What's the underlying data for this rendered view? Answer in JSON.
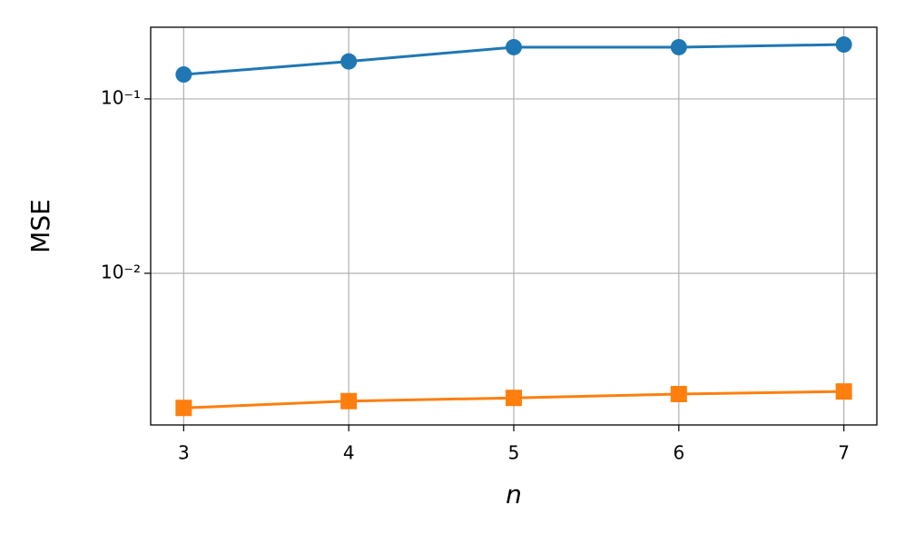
{
  "chart_data": {
    "type": "line",
    "xlabel": "n",
    "ylabel": "MSE",
    "x": [
      3,
      4,
      5,
      6,
      7
    ],
    "series": [
      {
        "color": "#1f77b4",
        "marker": "circle",
        "values": [
          0.138,
          0.164,
          0.198,
          0.198,
          0.205
        ]
      },
      {
        "color": "#ff7f0e",
        "marker": "square",
        "values": [
          0.00169,
          0.00185,
          0.00193,
          0.00203,
          0.0021
        ]
      }
    ],
    "xlim": [
      2.8,
      7.2
    ],
    "xticks": [
      3,
      4,
      5,
      6,
      7
    ],
    "ylim": [
      0.00135,
      0.2576
    ],
    "yscale": "log",
    "yticks": [
      {
        "value": 0.1,
        "label": "10⁻¹"
      },
      {
        "value": 0.01,
        "label": "10⁻²"
      }
    ],
    "grid": true
  }
}
